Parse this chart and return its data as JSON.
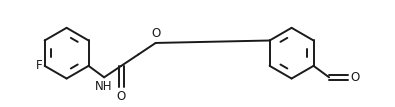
{
  "bg_color": "#ffffff",
  "line_color": "#1a1a1a",
  "line_width": 1.4,
  "font_size": 8.5,
  "figsize": [
    3.95,
    1.07
  ],
  "dpi": 100,
  "xlim": [
    0.0,
    9.5
  ],
  "ylim": [
    0.2,
    2.8
  ]
}
